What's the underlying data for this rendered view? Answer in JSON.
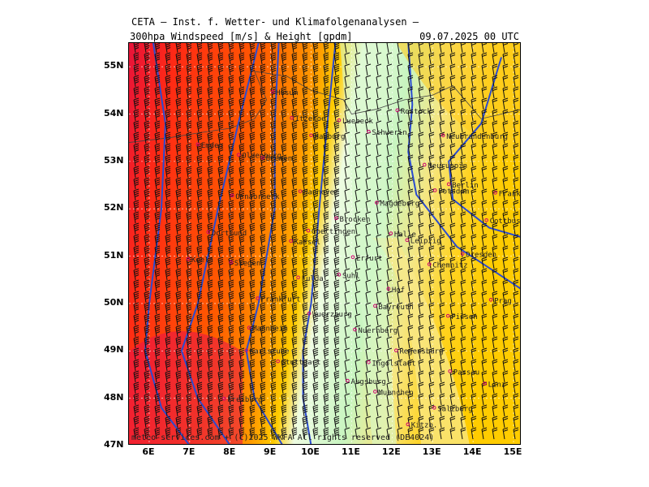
{
  "header": {
    "source": "CETA — Inst. f. Wetter- und Klimafolgenanalysen —",
    "title": "300hpa Windspeed [m/s] & Height [gpdm]",
    "datetime": "09.07.2025 00 UTC"
  },
  "axes": {
    "lat_labels": [
      "55N",
      "54N",
      "53N",
      "52N",
      "51N",
      "50N",
      "49N",
      "48N",
      "47N"
    ],
    "lon_labels": [
      "6E",
      "7E",
      "8E",
      "9E",
      "10E",
      "11E",
      "12E",
      "13E",
      "14E",
      "15E"
    ],
    "lat_range": [
      47,
      55.5
    ],
    "lon_range": [
      5.5,
      15.2
    ]
  },
  "cities": [
    {
      "name": "Rostock",
      "lat": 54.08,
      "lon": 12.13
    },
    {
      "name": "Schwerin",
      "lat": 53.63,
      "lon": 11.42
    },
    {
      "name": "Neubrandenburg",
      "lat": 53.55,
      "lon": 13.26
    },
    {
      "name": "Luebeck",
      "lat": 53.87,
      "lon": 10.69
    },
    {
      "name": "Hamburg",
      "lat": 53.55,
      "lon": 10.0
    },
    {
      "name": "Husum",
      "lat": 54.47,
      "lon": 9.05
    },
    {
      "name": "Itzehoe",
      "lat": 53.92,
      "lon": 9.52
    },
    {
      "name": "Bremen",
      "lat": 53.08,
      "lon": 8.8
    },
    {
      "name": "Emden",
      "lat": 53.36,
      "lon": 7.2
    },
    {
      "name": "Oldenburg",
      "lat": 53.14,
      "lon": 8.21
    },
    {
      "name": "Neuruppin",
      "lat": 52.93,
      "lon": 12.8
    },
    {
      "name": "Berlin",
      "lat": 52.52,
      "lon": 13.4
    },
    {
      "name": "Potsdam",
      "lat": 52.39,
      "lon": 13.06
    },
    {
      "name": "Frankfurt/O.",
      "lat": 52.34,
      "lon": 14.55
    },
    {
      "name": "Hannover",
      "lat": 52.37,
      "lon": 9.73
    },
    {
      "name": "Osnabrueck",
      "lat": 52.28,
      "lon": 8.05
    },
    {
      "name": "Magdeburg",
      "lat": 52.13,
      "lon": 11.62
    },
    {
      "name": "Cottbus",
      "lat": 51.76,
      "lon": 14.33
    },
    {
      "name": "Brocken",
      "lat": 51.8,
      "lon": 10.62
    },
    {
      "name": "Halle",
      "lat": 51.48,
      "lon": 11.97
    },
    {
      "name": "Leipzig",
      "lat": 51.34,
      "lon": 12.37
    },
    {
      "name": "Goettingen",
      "lat": 51.54,
      "lon": 9.93
    },
    {
      "name": "Kassel",
      "lat": 51.32,
      "lon": 9.5
    },
    {
      "name": "Dortmund",
      "lat": 51.51,
      "lon": 7.46
    },
    {
      "name": "Dresden",
      "lat": 51.05,
      "lon": 13.74
    },
    {
      "name": "Erfurt",
      "lat": 50.98,
      "lon": 11.03
    },
    {
      "name": "Chemnitz",
      "lat": 50.83,
      "lon": 12.92
    },
    {
      "name": "Koeln",
      "lat": 50.94,
      "lon": 6.96
    },
    {
      "name": "Siegen",
      "lat": 50.87,
      "lon": 8.02
    },
    {
      "name": "Suhl",
      "lat": 50.61,
      "lon": 10.69
    },
    {
      "name": "Fulda",
      "lat": 50.55,
      "lon": 9.68
    },
    {
      "name": "Hof",
      "lat": 50.31,
      "lon": 11.91
    },
    {
      "name": "Frankfurt",
      "lat": 50.11,
      "lon": 8.68
    },
    {
      "name": "Wuerzburg",
      "lat": 49.79,
      "lon": 9.95
    },
    {
      "name": "Bayreuth",
      "lat": 49.95,
      "lon": 11.58
    },
    {
      "name": "Nuernberg",
      "lat": 49.45,
      "lon": 11.08
    },
    {
      "name": "Pilsen",
      "lat": 49.74,
      "lon": 13.38
    },
    {
      "name": "Prag",
      "lat": 50.08,
      "lon": 14.44
    },
    {
      "name": "Mannheim",
      "lat": 49.49,
      "lon": 8.47
    },
    {
      "name": "Karlsruhe",
      "lat": 49.01,
      "lon": 8.4
    },
    {
      "name": "Regensburg",
      "lat": 49.01,
      "lon": 12.1
    },
    {
      "name": "Ingolstadt",
      "lat": 48.76,
      "lon": 11.42
    },
    {
      "name": "Stuttgart",
      "lat": 48.78,
      "lon": 9.18
    },
    {
      "name": "Augsburg",
      "lat": 48.37,
      "lon": 10.9
    },
    {
      "name": "Passau",
      "lat": 48.57,
      "lon": 13.43
    },
    {
      "name": "Linz",
      "lat": 48.31,
      "lon": 14.29
    },
    {
      "name": "Muenchen",
      "lat": 48.14,
      "lon": 11.58
    },
    {
      "name": "Freiburg",
      "lat": 47.99,
      "lon": 7.85
    },
    {
      "name": "Salzburg",
      "lat": 47.8,
      "lon": 13.04
    },
    {
      "name": "Kitzb.",
      "lat": 47.45,
      "lon": 12.39
    }
  ],
  "legend": {
    "units_wind": "m/s",
    "units_height": "gpdm"
  },
  "footer": {
    "copyright": "meteo-services.com + (c)2025 WKFA All rights reserved (DE4024)"
  }
}
